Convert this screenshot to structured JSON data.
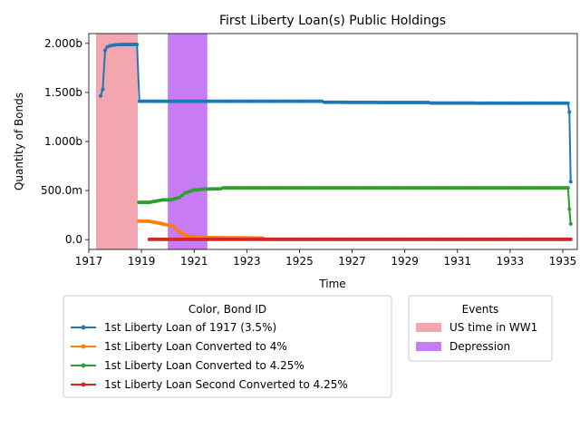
{
  "chart_data": {
    "type": "line",
    "title": "First Liberty Loan(s) Public Holdings",
    "xlabel": "Time",
    "ylabel": "Quantity of Bonds",
    "xlim": [
      1917.0,
      1935.55
    ],
    "ylim": [
      -100000000.0,
      2100000000.0
    ],
    "x_ticks": [
      1917,
      1919,
      1921,
      1923,
      1925,
      1927,
      1929,
      1931,
      1933,
      1935
    ],
    "x_tick_labels": [
      "1917",
      "1919",
      "1921",
      "1923",
      "1925",
      "1927",
      "1929",
      "1931",
      "1933",
      "1935"
    ],
    "y_ticks": [
      0,
      500000000,
      1000000000,
      1500000000,
      2000000000
    ],
    "y_tick_labels": [
      "0.0",
      "500.0m",
      "1.000b",
      "1.500b",
      "2.000b"
    ],
    "grid": false,
    "spans": [
      {
        "name": "US time in WW1",
        "start": 1917.27,
        "end": 1918.86,
        "color": "#f4a6b0"
      },
      {
        "name": "Depression",
        "start": 1920.0,
        "end": 1921.5,
        "color": "#c77cf5"
      }
    ],
    "series": [
      {
        "name": "1st Liberty Loan of 1917 (3.5%)",
        "color": "#1f77b4",
        "points": [
          [
            1917.45,
            1466000000.0
          ],
          [
            1917.53,
            1532000000.0
          ],
          [
            1917.62,
            1930000000.0
          ],
          [
            1917.7,
            1965000000.0
          ],
          [
            1917.8,
            1975000000.0
          ],
          [
            1918.0,
            1985000000.0
          ],
          [
            1918.2,
            1988000000.0
          ],
          [
            1918.6,
            1989000000.0
          ],
          [
            1918.83,
            1989000000.0
          ],
          [
            1918.92,
            1410000000.0
          ],
          [
            1919.5,
            1410000000.0
          ],
          [
            1921.0,
            1410000000.0
          ],
          [
            1922.0,
            1410000000.0
          ],
          [
            1924.0,
            1410000000.0
          ],
          [
            1925.85,
            1410000000.0
          ],
          [
            1925.95,
            1400000000.0
          ],
          [
            1928.0,
            1398000000.0
          ],
          [
            1929.9,
            1397000000.0
          ],
          [
            1930.0,
            1392000000.0
          ],
          [
            1932.0,
            1391000000.0
          ],
          [
            1934.0,
            1390000000.0
          ],
          [
            1935.2,
            1390000000.0
          ],
          [
            1935.25,
            1300000000.0
          ],
          [
            1935.3,
            590000000.0
          ]
        ]
      },
      {
        "name": "1st Liberty Loan Converted to 4%",
        "color": "#ff7f0e",
        "points": [
          [
            1918.9,
            190000000.0
          ],
          [
            1919.3,
            186000000.0
          ],
          [
            1919.6,
            172000000.0
          ],
          [
            1919.9,
            155000000.0
          ],
          [
            1920.2,
            135000000.0
          ],
          [
            1920.45,
            80000000.0
          ],
          [
            1920.7,
            40000000.0
          ],
          [
            1921.0,
            27000000.0
          ],
          [
            1921.5,
            22000000.0
          ],
          [
            1922.0,
            20000000.0
          ],
          [
            1923.0,
            18000000.0
          ],
          [
            1923.6,
            16000000.0
          ],
          [
            1923.7,
            4000000.0
          ],
          [
            1935.3,
            4000000.0
          ]
        ]
      },
      {
        "name": "1st Liberty Loan Converted to 4.25%",
        "color": "#2ca02c",
        "points": [
          [
            1918.9,
            380000000.0
          ],
          [
            1919.3,
            380000000.0
          ],
          [
            1919.6,
            395000000.0
          ],
          [
            1919.8,
            405000000.0
          ],
          [
            1920.1,
            405000000.0
          ],
          [
            1920.45,
            430000000.0
          ],
          [
            1920.65,
            475000000.0
          ],
          [
            1921.0,
            505000000.0
          ],
          [
            1921.4,
            515000000.0
          ],
          [
            1922.0,
            518000000.0
          ],
          [
            1922.1,
            527000000.0
          ],
          [
            1925.0,
            527000000.0
          ],
          [
            1930.0,
            527000000.0
          ],
          [
            1935.2,
            527000000.0
          ],
          [
            1935.25,
            310000000.0
          ],
          [
            1935.3,
            160000000.0
          ]
        ]
      },
      {
        "name": "1st Liberty Loan Second Converted to 4.25%",
        "color": "#d62728",
        "points": [
          [
            1919.3,
            3000000.0
          ],
          [
            1925.0,
            3000000.0
          ],
          [
            1930.0,
            3000000.0
          ],
          [
            1935.3,
            3000000.0
          ]
        ]
      }
    ],
    "legend_series_title": "Color, Bond ID",
    "legend_events_title": "Events",
    "legend_placement": "bottom"
  }
}
